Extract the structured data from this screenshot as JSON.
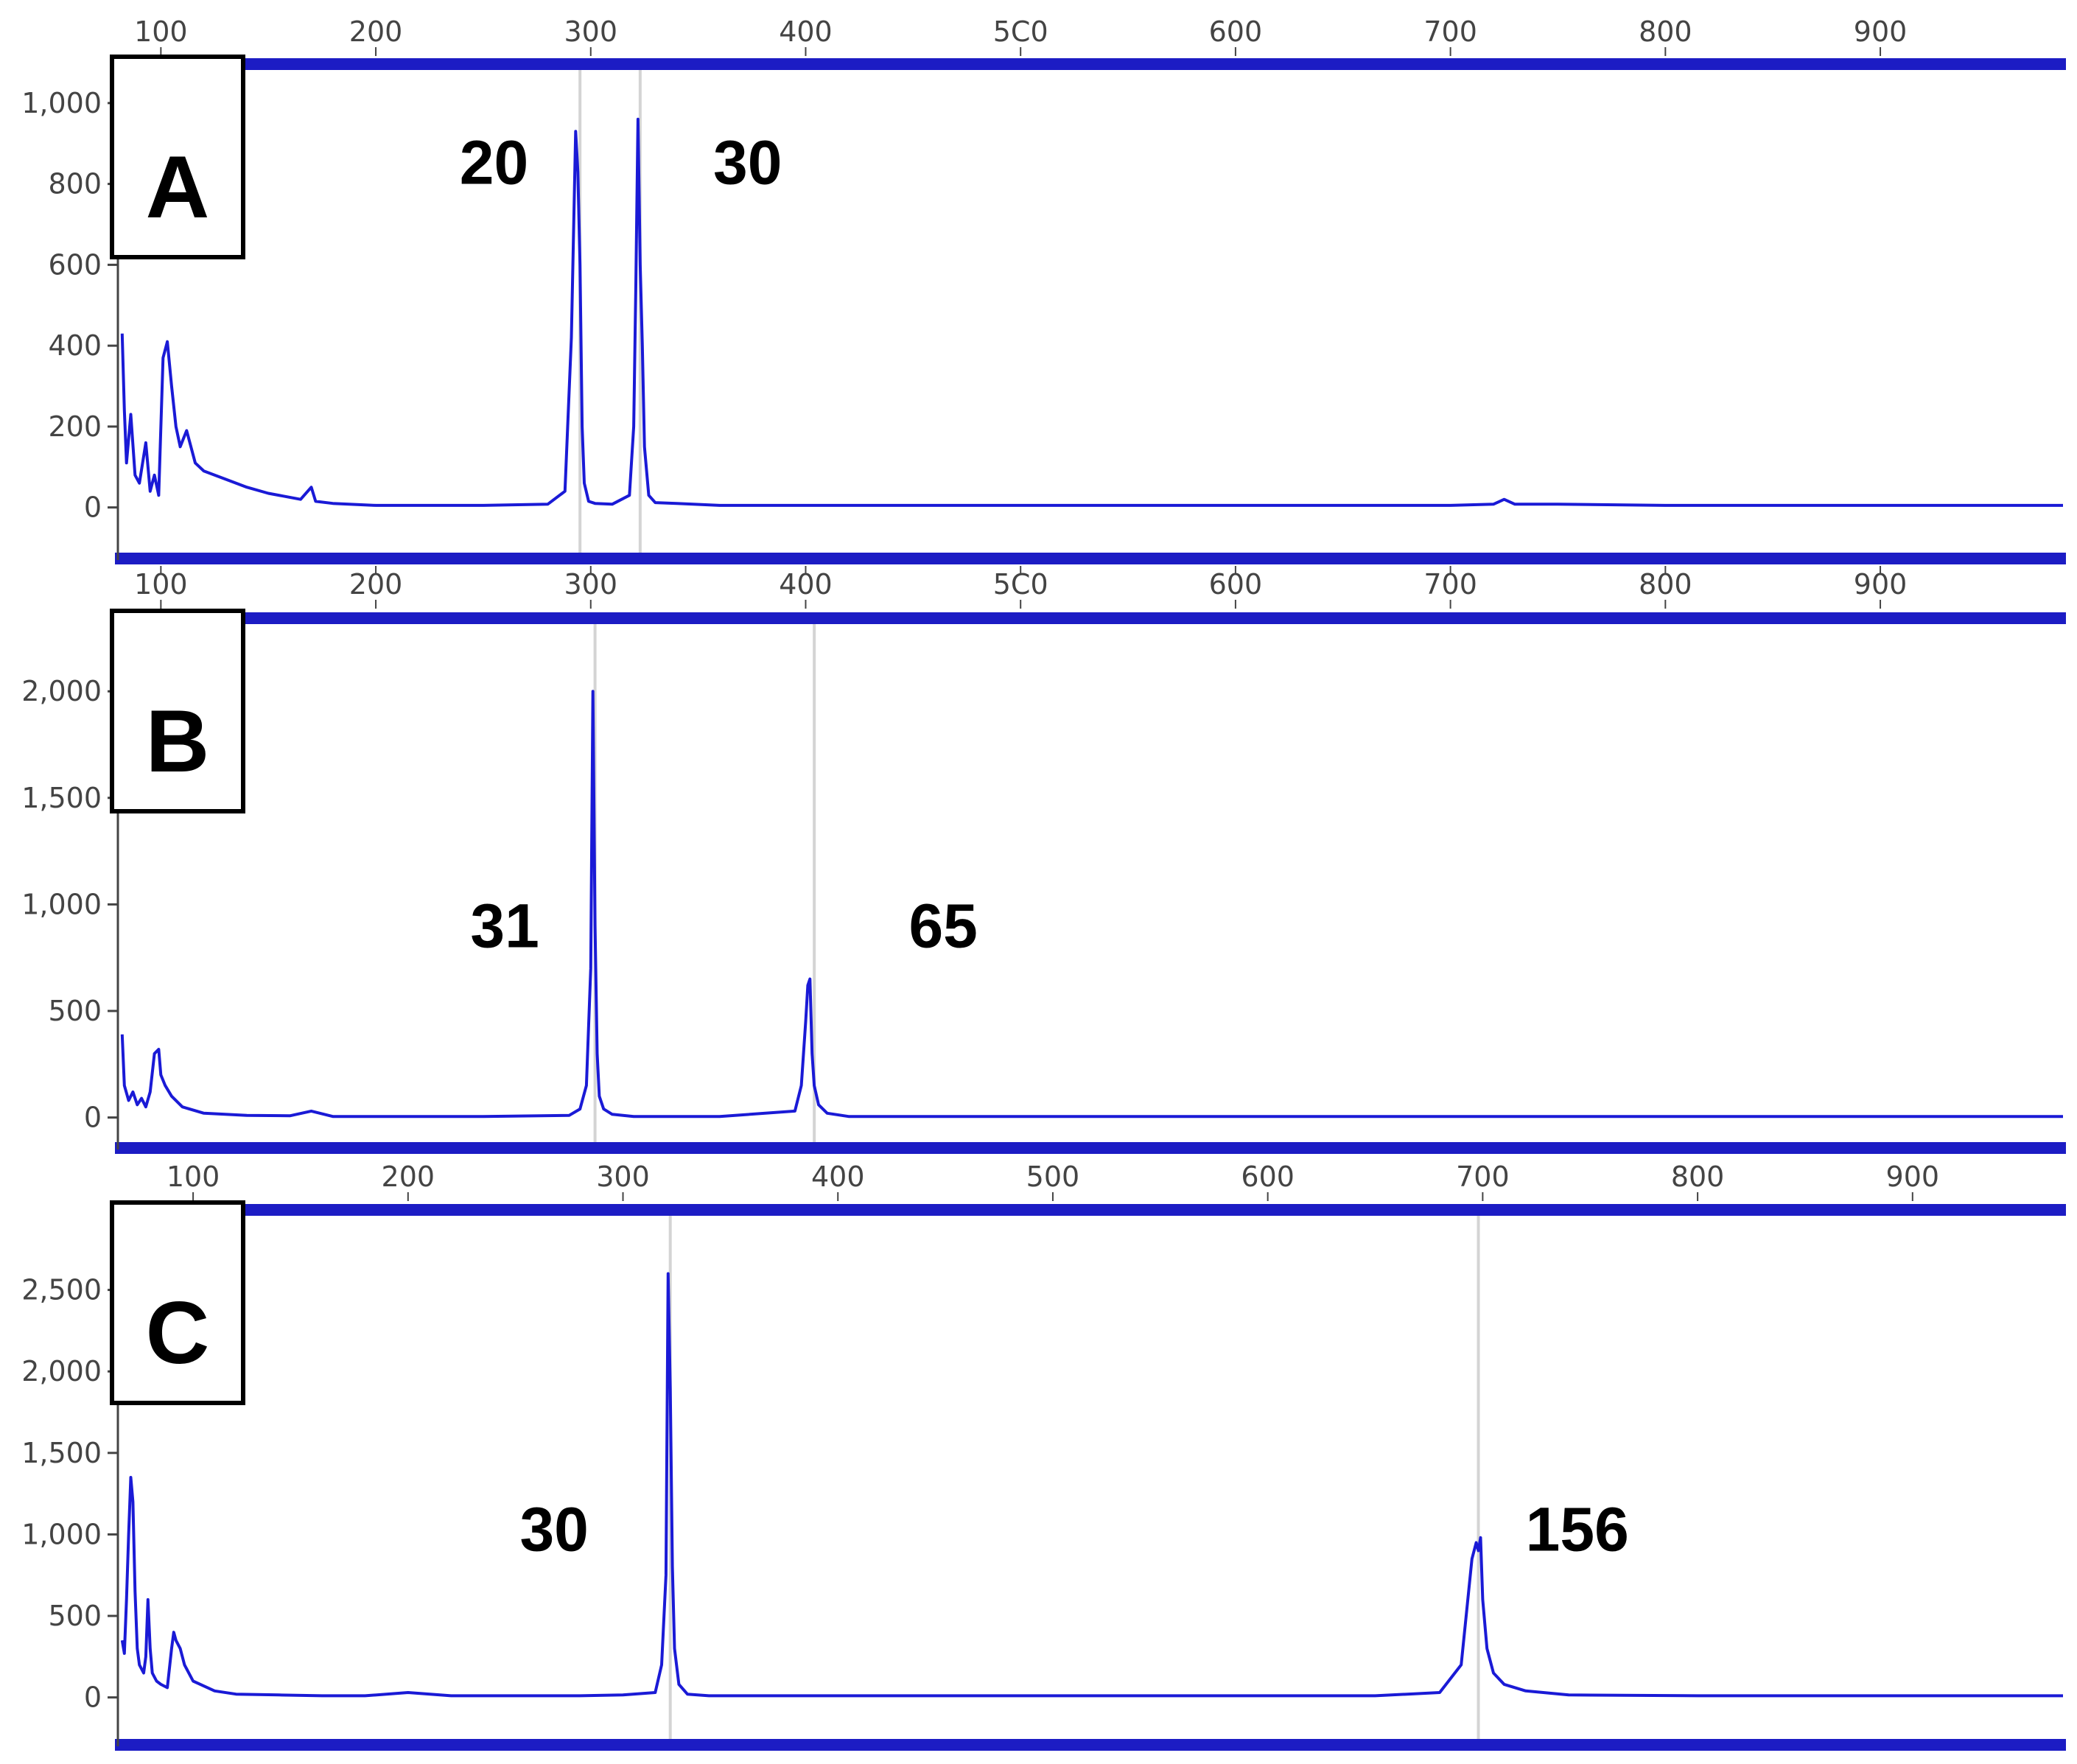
{
  "colors": {
    "trace": "#1a1ad6",
    "bar": "#1c1cc4",
    "marker": "#d4d4d4",
    "axis": "#444444"
  },
  "chart_data": [
    {
      "type": "line",
      "panel_label": "A",
      "title": "",
      "xlabel": "",
      "ylabel": "",
      "xlim": [
        80,
        985
      ],
      "ylim": [
        -130,
        1100
      ],
      "xticks": [
        100,
        200,
        300,
        400,
        500,
        600,
        700,
        800,
        900
      ],
      "xtick_labels": [
        "100",
        "200",
        "300",
        "400",
        "5C0",
        "600",
        "700",
        "800",
        "900"
      ],
      "yticks": [
        0,
        200,
        400,
        600,
        800,
        1000
      ],
      "ytick_labels": [
        "0",
        "200",
        "400",
        "600",
        "800",
        "1,000"
      ],
      "grid": false,
      "series": [
        {
          "x": [
            82,
            83,
            84,
            86,
            88,
            90,
            93,
            95,
            97,
            99,
            101,
            103,
            105,
            107,
            109,
            112,
            116,
            120,
            130,
            140,
            150,
            165,
            170,
            172,
            180,
            200,
            220,
            250,
            280,
            288,
            291,
            293,
            294,
            295,
            296,
            297,
            299,
            302,
            310,
            318,
            320,
            321,
            322,
            323,
            324,
            325,
            327,
            330,
            340,
            360,
            400,
            450,
            500,
            550,
            600,
            650,
            700,
            720,
            725,
            730,
            750,
            800,
            850,
            900,
            950,
            985
          ],
          "y": [
            430,
            240,
            110,
            230,
            80,
            60,
            160,
            40,
            80,
            30,
            370,
            410,
            300,
            200,
            150,
            190,
            110,
            90,
            70,
            50,
            35,
            20,
            50,
            15,
            10,
            5,
            5,
            5,
            8,
            40,
            420,
            930,
            830,
            600,
            200,
            60,
            15,
            10,
            8,
            30,
            200,
            550,
            960,
            600,
            400,
            150,
            30,
            12,
            10,
            5,
            5,
            5,
            5,
            5,
            5,
            5,
            5,
            8,
            20,
            8,
            8,
            5,
            5,
            5,
            5,
            5
          ]
        }
      ],
      "markers": [
        295,
        323
      ],
      "annotations": [
        {
          "text": "20",
          "x": 255,
          "y": 800
        },
        {
          "text": "30",
          "x": 373,
          "y": 800
        }
      ]
    },
    {
      "type": "line",
      "panel_label": "B",
      "title": "",
      "xlabel": "",
      "ylabel": "",
      "xlim": [
        80,
        985
      ],
      "ylim": [
        -150,
        2350
      ],
      "xticks": [
        100,
        200,
        300,
        400,
        500,
        600,
        700,
        800,
        900
      ],
      "xtick_labels": [
        "100",
        "200",
        "300",
        "400",
        "5C0",
        "600",
        "700",
        "800",
        "900"
      ],
      "yticks": [
        0,
        500,
        1000,
        1500,
        2000
      ],
      "ytick_labels": [
        "0",
        "500",
        "1,000",
        "1,500",
        "2,000"
      ],
      "grid": false,
      "series": [
        {
          "x": [
            82,
            83,
            85,
            87,
            89,
            91,
            93,
            95,
            97,
            99,
            100,
            102,
            105,
            110,
            120,
            140,
            160,
            170,
            180,
            200,
            250,
            290,
            295,
            298,
            300,
            301,
            302,
            303,
            304,
            306,
            310,
            320,
            360,
            395,
            398,
            400,
            401,
            402,
            403,
            404,
            406,
            410,
            420,
            450,
            500,
            600,
            700,
            800,
            900,
            985
          ],
          "y": [
            390,
            150,
            80,
            120,
            60,
            90,
            50,
            120,
            300,
            320,
            200,
            150,
            100,
            50,
            20,
            10,
            8,
            30,
            5,
            5,
            5,
            10,
            40,
            150,
            700,
            2000,
            900,
            300,
            100,
            40,
            15,
            5,
            5,
            30,
            150,
            450,
            620,
            650,
            300,
            150,
            60,
            20,
            5,
            5,
            5,
            5,
            5,
            5,
            5,
            5
          ]
        }
      ],
      "markers": [
        302,
        404
      ],
      "annotations": [
        {
          "text": "31",
          "x": 260,
          "y": 800
        },
        {
          "text": "65",
          "x": 464,
          "y": 800
        }
      ]
    },
    {
      "type": "line",
      "panel_label": "C",
      "title": "",
      "xlabel": "",
      "ylabel": "",
      "xlim": [
        65,
        970
      ],
      "ylim": [
        -300,
        3000
      ],
      "xticks": [
        100,
        200,
        300,
        400,
        500,
        600,
        700,
        800,
        900
      ],
      "xtick_labels": [
        "100",
        "200",
        "300",
        "400",
        "500",
        "600",
        "700",
        "800",
        "900"
      ],
      "yticks": [
        0,
        500,
        1000,
        1500,
        2000,
        2500
      ],
      "ytick_labels": [
        "0",
        "500",
        "1,000",
        "1,500",
        "2,000",
        "2,500"
      ],
      "grid": false,
      "series": [
        {
          "x": [
            67,
            68,
            69,
            70,
            71,
            72,
            73,
            74,
            75,
            77,
            78,
            79,
            80,
            81,
            83,
            85,
            88,
            90,
            91,
            92,
            94,
            96,
            100,
            110,
            120,
            140,
            160,
            180,
            200,
            220,
            250,
            280,
            300,
            315,
            318,
            320,
            321,
            322,
            323,
            324,
            326,
            330,
            340,
            380,
            450,
            500,
            550,
            600,
            650,
            680,
            690,
            695,
            697,
            698,
            699,
            700,
            702,
            705,
            710,
            720,
            740,
            800,
            850,
            900,
            950,
            970
          ],
          "y": [
            350,
            270,
            600,
            1000,
            1350,
            1200,
            650,
            300,
            200,
            150,
            250,
            600,
            300,
            150,
            100,
            80,
            60,
            300,
            400,
            350,
            300,
            200,
            100,
            40,
            20,
            15,
            10,
            10,
            30,
            10,
            10,
            10,
            15,
            30,
            200,
            750,
            2600,
            1900,
            800,
            300,
            80,
            20,
            10,
            10,
            10,
            10,
            10,
            10,
            10,
            30,
            200,
            850,
            950,
            900,
            980,
            600,
            300,
            150,
            80,
            40,
            15,
            10,
            10,
            10,
            10,
            10
          ]
        }
      ],
      "markers": [
        322,
        698
      ],
      "annotations": [
        {
          "text": "30",
          "x": 268,
          "y": 900
        },
        {
          "text": "156",
          "x": 744,
          "y": 900
        }
      ]
    }
  ]
}
